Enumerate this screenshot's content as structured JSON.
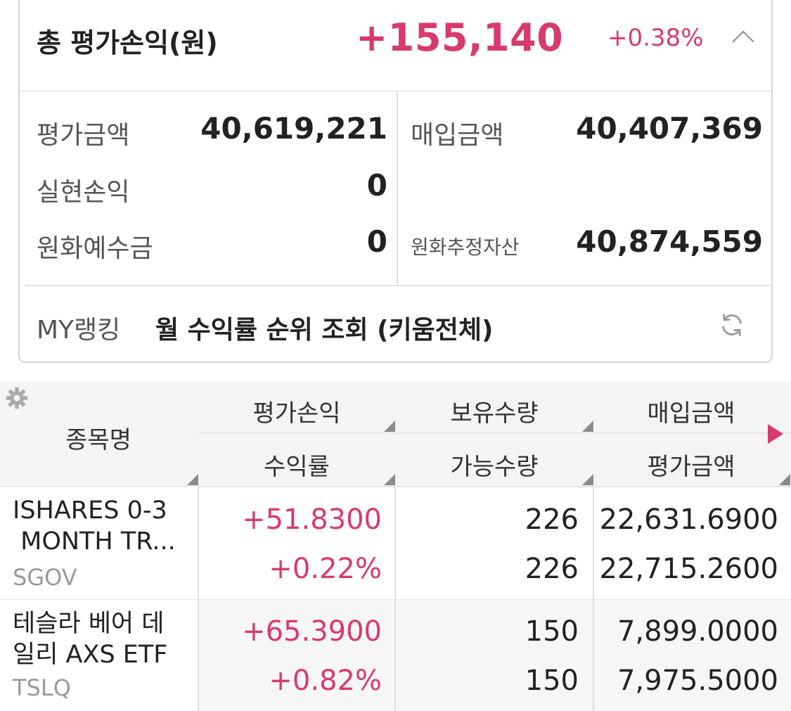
{
  "summary": {
    "total_label": "총 평가손익(원)",
    "total_value": "+155,140",
    "total_rate": "+0.38%",
    "eval_amount_label": "평가금액",
    "eval_amount_value": "40,619,221",
    "purchase_amount_label": "매입금액",
    "purchase_amount_value": "40,407,369",
    "realized_label": "실현손익",
    "realized_value": "0",
    "krw_deposit_label": "원화예수금",
    "krw_deposit_value": "0",
    "krw_est_assets_label": "원화추정자산",
    "krw_est_assets_value": "40,874,559"
  },
  "ranking": {
    "label": "MY랭킹",
    "link": "월 수익률 순위 조회 (키움전체)"
  },
  "table": {
    "headers": {
      "name": "종목명",
      "pnl": "평가손익",
      "yield": "수익률",
      "holding_qty": "보유수량",
      "available_qty": "가능수량",
      "purchase_amount": "매입금액",
      "eval_amount": "평가금액"
    },
    "rows": [
      {
        "name_line1": "ISHARES 0-3",
        "name_line2": " MONTH TR...",
        "code": "SGOV",
        "pnl": "+51.8300",
        "yield": "+0.22%",
        "holding_qty": "226",
        "available_qty": "226",
        "purchase_amount": "22,631.6900",
        "eval_amount": "22,715.2600"
      },
      {
        "name_line1": "테슬라 베어 데",
        "name_line2": "일리 AXS ETF",
        "code": "TSLQ",
        "pnl": "+65.3900",
        "yield": "+0.82%",
        "holding_qty": "150",
        "available_qty": "150",
        "purchase_amount": "7,899.0000",
        "eval_amount": "7,975.5000"
      }
    ]
  },
  "icons": {
    "collapse": "chevron-up-icon",
    "refresh": "refresh-icon",
    "settings": "gear-icon",
    "next_columns": "triangle-right-icon"
  },
  "colors": {
    "positive": "#d93a6e",
    "header_bg": "#f4f4f4"
  }
}
